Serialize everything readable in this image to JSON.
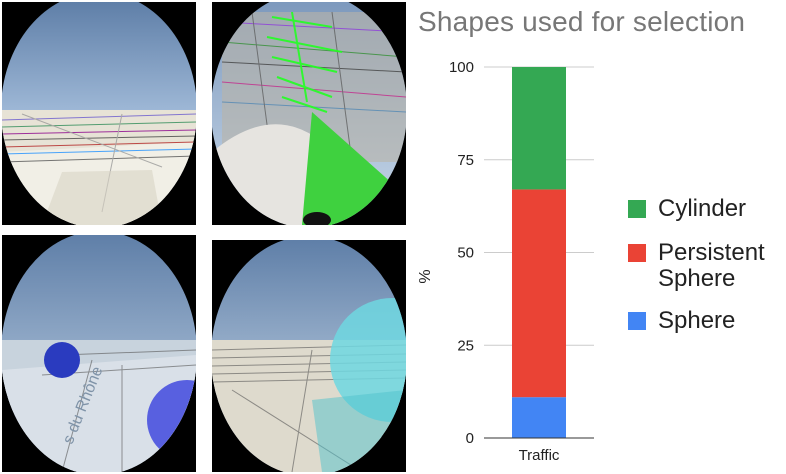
{
  "chart_data": {
    "type": "bar",
    "stacked": true,
    "title": "Shapes used for selection",
    "xlabel": "",
    "ylabel": "%",
    "categories": [
      "Traffic"
    ],
    "ylim": [
      0,
      100
    ],
    "yticks": [
      0,
      25,
      50,
      75,
      100
    ],
    "grid": true,
    "legend_position": "right",
    "series": [
      {
        "name": "Sphere",
        "values": [
          11
        ],
        "color": "#4285F4"
      },
      {
        "name": "Persistent\nSphere",
        "values": [
          56
        ],
        "color": "#EA4335"
      },
      {
        "name": "Cylinder",
        "values": [
          33
        ],
        "color": "#34A853"
      }
    ]
  },
  "legend_order": [
    "Cylinder",
    "Persistent\nSphere",
    "Sphere"
  ],
  "panels": [
    {
      "name": "screenshot-city-overview",
      "visible_text": ""
    },
    {
      "name": "screenshot-cylinder-selection",
      "visible_text": ""
    },
    {
      "name": "screenshot-sphere-selection",
      "visible_text": "s du Rhône"
    },
    {
      "name": "screenshot-persistent-sphere-selection",
      "visible_text": ""
    }
  ]
}
